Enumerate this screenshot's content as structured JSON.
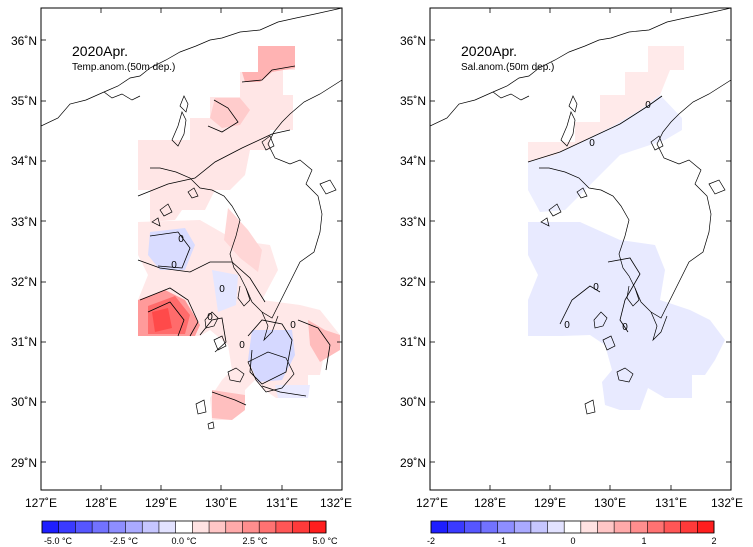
{
  "panels": [
    {
      "id": "temp",
      "title": "2020Apr.",
      "subtitle": "Temp.anom.(50m dep.)",
      "contour_zero_label": "0",
      "colorbar": {
        "colors": [
          "#1e1eff",
          "#3a3aff",
          "#5656ff",
          "#7272ff",
          "#8e8eff",
          "#aaaaff",
          "#c6c6ff",
          "#e2e2ff",
          "#ffffff",
          "#ffe2e2",
          "#ffc6c6",
          "#ffaaaa",
          "#ff8e8e",
          "#ff7272",
          "#ff5656",
          "#ff3a3a",
          "#ff1e1e"
        ],
        "tick_labels": [
          "-5.0 °C",
          "-2.5 °C",
          "0.0 °C",
          "2.5 °C",
          "5.0 °C"
        ]
      }
    },
    {
      "id": "salt",
      "title": "2020Apr.",
      "subtitle": "Sal.anom.(50m dep.)",
      "contour_zero_label": "0",
      "colorbar": {
        "colors": [
          "#1e1eff",
          "#3a3aff",
          "#5656ff",
          "#7272ff",
          "#8e8eff",
          "#aaaaff",
          "#c6c6ff",
          "#e2e2ff",
          "#ffffff",
          "#ffe2e2",
          "#ffc6c6",
          "#ffaaaa",
          "#ff8e8e",
          "#ff7272",
          "#ff5656",
          "#ff3a3a",
          "#ff1e1e"
        ],
        "tick_labels": [
          "-2",
          "-1",
          "0",
          "1",
          "2"
        ]
      }
    }
  ],
  "axes": {
    "lon_labels": [
      "127˚E",
      "128˚E",
      "129˚E",
      "130˚E",
      "131˚E",
      "132˚E"
    ],
    "lat_labels": [
      "36˚N",
      "35˚N",
      "34˚N",
      "33˚N",
      "32˚N",
      "31˚N",
      "30˚N",
      "29˚N"
    ]
  },
  "colors": {
    "land_outline": "#000000",
    "frame": "#000000"
  }
}
